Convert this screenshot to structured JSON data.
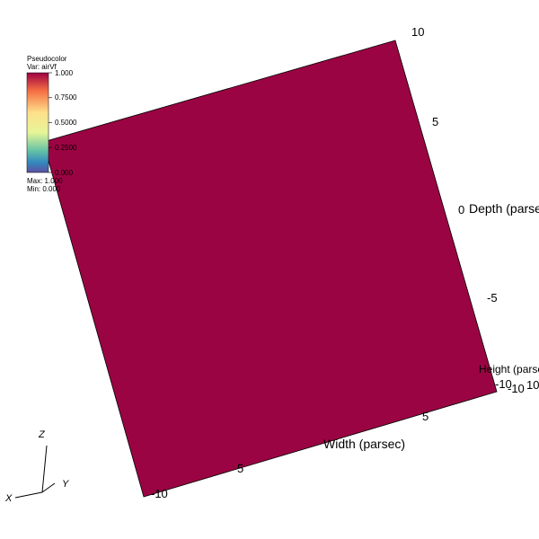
{
  "legend": {
    "title": "Pseudocolor",
    "var_label": "Var: airVf",
    "ticks": [
      "1.000",
      "0.7500",
      "0.5000",
      "0.2500",
      "0.000"
    ],
    "max_label": "Max: 1.000",
    "min_label": "Min: 0.000",
    "colors": [
      "#9e0142",
      "#f46d43",
      "#fee08b",
      "#e6f598",
      "#66c2a5",
      "#3288bd",
      "#5e4fa2"
    ]
  },
  "plot": {
    "face_color": "#9b0443"
  },
  "axes": {
    "depth_label": "Depth (parsec)",
    "width_label": "Width (parsec)",
    "height_label": "Height (parsec)",
    "depth_ticks": [
      "10",
      "5",
      "0",
      "-5",
      "-10"
    ],
    "width_ticks": [
      "-10",
      "5",
      "-10"
    ],
    "width_ticks_extra": [
      "5"
    ],
    "height_tick": "10"
  },
  "triad": {
    "x": "X",
    "y": "Y",
    "z": "Z"
  }
}
